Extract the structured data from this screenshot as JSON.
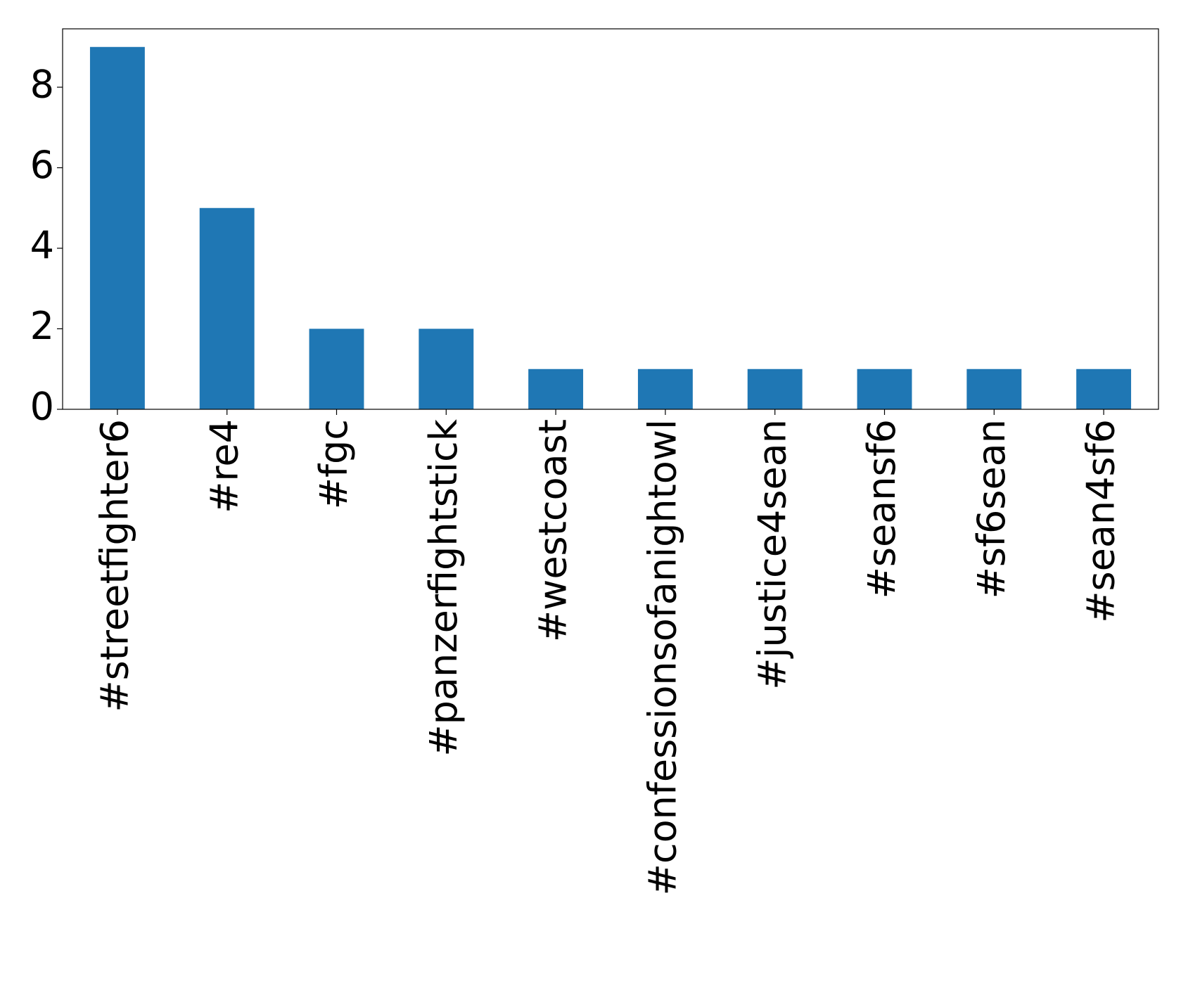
{
  "chart_data": {
    "type": "bar",
    "categories": [
      "#streetfighter6",
      "#re4",
      "#fgc",
      "#panzerfightstick",
      "#westcoast",
      "#confessionsofanightowl",
      "#justice4sean",
      "#seansf6",
      "#sf6sean",
      "#sean4sf6"
    ],
    "values": [
      9,
      5,
      2,
      2,
      1,
      1,
      1,
      1,
      1,
      1
    ],
    "color": "#1f77b4",
    "ylim": [
      0,
      9.45
    ],
    "yticks": [
      0,
      2,
      4,
      6,
      8
    ],
    "grid": false
  }
}
